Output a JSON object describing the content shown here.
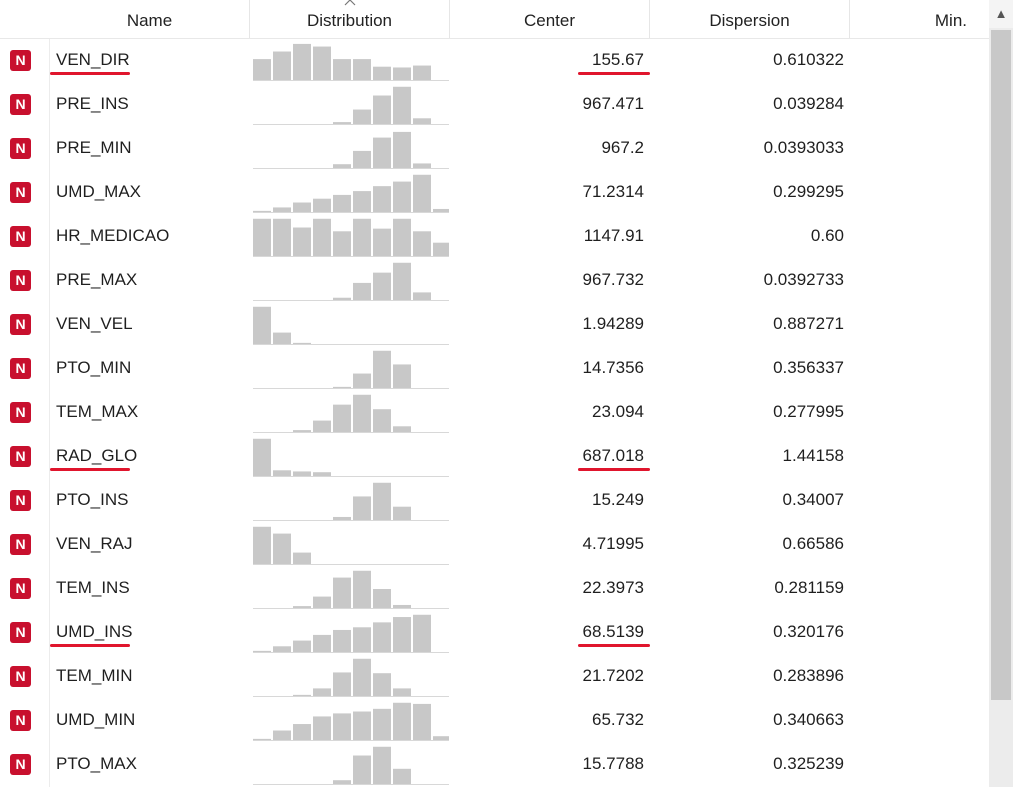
{
  "columns": {
    "name": "Name",
    "distribution": "Distribution",
    "center": "Center",
    "dispersion": "Dispersion",
    "min": "Min."
  },
  "rows": [
    {
      "badge": "N",
      "name": "VEN_DIR",
      "center": "155.67",
      "dispersion": "0.610322",
      "hist": [
        0.55,
        0.75,
        0.95,
        0.88,
        0.55,
        0.55,
        0.35,
        0.33,
        0.38,
        0
      ],
      "underline_name": true,
      "underline_center": true
    },
    {
      "badge": "N",
      "name": "PRE_INS",
      "center": "967.471",
      "dispersion": "0.039284",
      "hist": [
        0,
        0,
        0,
        0,
        0.05,
        0.38,
        0.75,
        0.98,
        0.15,
        0
      ],
      "underline_name": false,
      "underline_center": false
    },
    {
      "badge": "N",
      "name": "PRE_MIN",
      "center": "967.2",
      "dispersion": "0.0393033",
      "hist": [
        0,
        0,
        0,
        0,
        0.1,
        0.45,
        0.8,
        0.95,
        0.12,
        0
      ],
      "underline_name": false,
      "underline_center": false
    },
    {
      "badge": "N",
      "name": "UMD_MAX",
      "center": "71.2314",
      "dispersion": "0.299295",
      "hist": [
        0.03,
        0.12,
        0.25,
        0.35,
        0.45,
        0.55,
        0.68,
        0.8,
        0.98,
        0.08
      ],
      "underline_name": false,
      "underline_center": false
    },
    {
      "badge": "N",
      "name": "HR_MEDICAO",
      "center": "1147.91",
      "dispersion": "0.60",
      "hist": [
        0.98,
        0.98,
        0.75,
        0.98,
        0.65,
        0.98,
        0.72,
        0.98,
        0.65,
        0.35
      ],
      "underline_name": false,
      "underline_center": false
    },
    {
      "badge": "N",
      "name": "PRE_MAX",
      "center": "967.732",
      "dispersion": "0.0392733",
      "hist": [
        0,
        0,
        0,
        0,
        0.06,
        0.45,
        0.72,
        0.98,
        0.2,
        0
      ],
      "underline_name": false,
      "underline_center": false
    },
    {
      "badge": "N",
      "name": "VEN_VEL",
      "center": "1.94289",
      "dispersion": "0.887271",
      "hist": [
        0.98,
        0.3,
        0.03,
        0,
        0,
        0,
        0,
        0,
        0,
        0
      ],
      "underline_name": false,
      "underline_center": false
    },
    {
      "badge": "N",
      "name": "PTO_MIN",
      "center": "14.7356",
      "dispersion": "0.356337",
      "hist": [
        0,
        0,
        0,
        0,
        0.03,
        0.38,
        0.98,
        0.62,
        0,
        0
      ],
      "underline_name": false,
      "underline_center": false
    },
    {
      "badge": "N",
      "name": "TEM_MAX",
      "center": "23.094",
      "dispersion": "0.277995",
      "hist": [
        0,
        0,
        0.05,
        0.3,
        0.72,
        0.98,
        0.6,
        0.15,
        0,
        0
      ],
      "underline_name": false,
      "underline_center": false
    },
    {
      "badge": "N",
      "name": "RAD_GLO",
      "center": "687.018",
      "dispersion": "1.44158",
      "hist": [
        0.98,
        0.15,
        0.12,
        0.1,
        0,
        0,
        0,
        0,
        0,
        0
      ],
      "underline_name": true,
      "underline_center": true
    },
    {
      "badge": "N",
      "name": "PTO_INS",
      "center": "15.249",
      "dispersion": "0.34007",
      "hist": [
        0,
        0,
        0,
        0,
        0.08,
        0.62,
        0.98,
        0.35,
        0,
        0
      ],
      "underline_name": false,
      "underline_center": false
    },
    {
      "badge": "N",
      "name": "VEN_RAJ",
      "center": "4.71995",
      "dispersion": "0.66586",
      "hist": [
        0.98,
        0.8,
        0.3,
        0,
        0,
        0,
        0,
        0,
        0,
        0
      ],
      "underline_name": false,
      "underline_center": false
    },
    {
      "badge": "N",
      "name": "TEM_INS",
      "center": "22.3973",
      "dispersion": "0.281159",
      "hist": [
        0,
        0,
        0.05,
        0.3,
        0.8,
        0.98,
        0.5,
        0.08,
        0,
        0
      ],
      "underline_name": false,
      "underline_center": false
    },
    {
      "badge": "N",
      "name": "UMD_INS",
      "center": "68.5139",
      "dispersion": "0.320176",
      "hist": [
        0.03,
        0.15,
        0.3,
        0.45,
        0.58,
        0.65,
        0.78,
        0.92,
        0.98,
        0
      ],
      "underline_name": true,
      "underline_center": true
    },
    {
      "badge": "N",
      "name": "TEM_MIN",
      "center": "21.7202",
      "dispersion": "0.283896",
      "hist": [
        0,
        0,
        0.03,
        0.2,
        0.62,
        0.98,
        0.6,
        0.2,
        0,
        0
      ],
      "underline_name": false,
      "underline_center": false
    },
    {
      "badge": "N",
      "name": "UMD_MIN",
      "center": "65.732",
      "dispersion": "0.340663",
      "hist": [
        0.03,
        0.25,
        0.42,
        0.62,
        0.7,
        0.75,
        0.82,
        0.98,
        0.95,
        0.1
      ],
      "underline_name": false,
      "underline_center": false
    },
    {
      "badge": "N",
      "name": "PTO_MAX",
      "center": "15.7788",
      "dispersion": "0.325239",
      "hist": [
        0,
        0,
        0,
        0,
        0.1,
        0.75,
        0.98,
        0.4,
        0,
        0
      ],
      "underline_name": false,
      "underline_center": false
    }
  ],
  "colors": {
    "badge": "#c8102e",
    "bar": "#c8c8c8",
    "underline": "#e0152d",
    "scrollbar": "#ececec"
  },
  "icons": {
    "sort": "caret-up-icon",
    "scroll_up": "triangle-up-icon"
  }
}
